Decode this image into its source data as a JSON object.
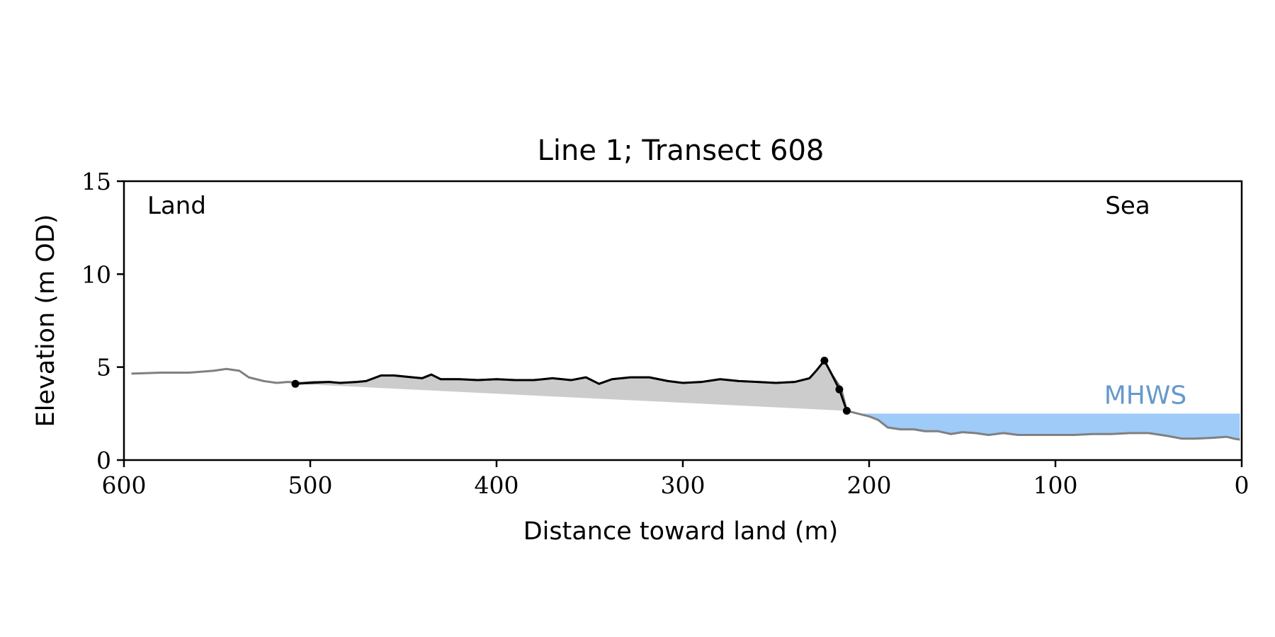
{
  "chart_data": {
    "type": "line",
    "title": "Line 1; Transect 608",
    "xlabel": "Distance toward land (m)",
    "ylabel": "Elevation (m OD)",
    "xlim": [
      600,
      0
    ],
    "ylim": [
      0,
      15
    ],
    "x_ticks": [
      "600",
      "500",
      "400",
      "300",
      "200",
      "100",
      "0"
    ],
    "y_ticks": [
      "0",
      "5",
      "10",
      "15"
    ],
    "grid": false,
    "annotations": {
      "left": "Land",
      "right": "Sea",
      "mhws_label": "MHWS"
    },
    "mhws": {
      "elevation": 2.5,
      "x_start": 204,
      "x_end": 1
    },
    "colors": {
      "profile": "#808080",
      "dune": "#000000",
      "dune_fill": "#cccccc",
      "water": "#9ecbf7",
      "mhws_text": "#6699cc"
    },
    "series": [
      {
        "key": "profile",
        "points": [
          [
            596,
            4.65
          ],
          [
            580,
            4.7
          ],
          [
            565,
            4.7
          ],
          [
            552,
            4.8
          ],
          [
            545,
            4.9
          ],
          [
            538,
            4.8
          ],
          [
            533,
            4.45
          ],
          [
            525,
            4.25
          ],
          [
            518,
            4.15
          ],
          [
            512,
            4.2
          ],
          [
            505,
            4.15
          ],
          [
            498,
            4.2
          ],
          [
            490,
            4.2
          ],
          [
            484,
            4.15
          ],
          [
            475,
            4.2
          ],
          [
            470,
            4.25
          ],
          [
            462,
            4.55
          ],
          [
            455,
            4.55
          ],
          [
            445,
            4.45
          ],
          [
            440,
            4.4
          ],
          [
            435,
            4.6
          ],
          [
            430,
            4.35
          ],
          [
            420,
            4.35
          ],
          [
            410,
            4.3
          ],
          [
            400,
            4.35
          ],
          [
            390,
            4.3
          ],
          [
            380,
            4.3
          ],
          [
            370,
            4.4
          ],
          [
            360,
            4.3
          ],
          [
            352,
            4.45
          ],
          [
            345,
            4.1
          ],
          [
            338,
            4.35
          ],
          [
            328,
            4.45
          ],
          [
            318,
            4.45
          ],
          [
            308,
            4.25
          ],
          [
            300,
            4.15
          ],
          [
            290,
            4.2
          ],
          [
            280,
            4.35
          ],
          [
            270,
            4.25
          ],
          [
            260,
            4.2
          ],
          [
            250,
            4.15
          ],
          [
            240,
            4.2
          ],
          [
            232,
            4.4
          ],
          [
            228,
            4.85
          ],
          [
            224,
            5.35
          ],
          [
            220,
            4.6
          ],
          [
            215,
            3.85
          ],
          [
            212,
            2.65
          ],
          [
            208,
            2.55
          ],
          [
            200,
            2.35
          ],
          [
            195,
            2.15
          ],
          [
            190,
            1.75
          ],
          [
            183,
            1.65
          ],
          [
            176,
            1.65
          ],
          [
            170,
            1.55
          ],
          [
            163,
            1.55
          ],
          [
            156,
            1.4
          ],
          [
            150,
            1.5
          ],
          [
            143,
            1.45
          ],
          [
            136,
            1.35
          ],
          [
            128,
            1.45
          ],
          [
            120,
            1.35
          ],
          [
            110,
            1.35
          ],
          [
            100,
            1.35
          ],
          [
            90,
            1.35
          ],
          [
            80,
            1.4
          ],
          [
            70,
            1.4
          ],
          [
            60,
            1.45
          ],
          [
            50,
            1.45
          ],
          [
            40,
            1.3
          ],
          [
            32,
            1.15
          ],
          [
            25,
            1.15
          ],
          [
            15,
            1.2
          ],
          [
            8,
            1.25
          ],
          [
            4,
            1.15
          ],
          [
            1,
            1.1
          ]
        ]
      },
      {
        "key": "dune",
        "points": [
          [
            508,
            4.1
          ],
          [
            500,
            4.15
          ],
          [
            490,
            4.2
          ],
          [
            484,
            4.15
          ],
          [
            475,
            4.2
          ],
          [
            470,
            4.25
          ],
          [
            462,
            4.55
          ],
          [
            455,
            4.55
          ],
          [
            445,
            4.45
          ],
          [
            440,
            4.4
          ],
          [
            435,
            4.6
          ],
          [
            430,
            4.35
          ],
          [
            420,
            4.35
          ],
          [
            410,
            4.3
          ],
          [
            400,
            4.35
          ],
          [
            390,
            4.3
          ],
          [
            380,
            4.3
          ],
          [
            370,
            4.4
          ],
          [
            360,
            4.3
          ],
          [
            352,
            4.45
          ],
          [
            345,
            4.1
          ],
          [
            338,
            4.35
          ],
          [
            328,
            4.45
          ],
          [
            318,
            4.45
          ],
          [
            308,
            4.25
          ],
          [
            300,
            4.15
          ],
          [
            290,
            4.2
          ],
          [
            280,
            4.35
          ],
          [
            270,
            4.25
          ],
          [
            260,
            4.2
          ],
          [
            250,
            4.15
          ],
          [
            240,
            4.2
          ],
          [
            232,
            4.4
          ],
          [
            228,
            4.85
          ],
          [
            224,
            5.35
          ],
          [
            220,
            4.6
          ],
          [
            216,
            3.8
          ],
          [
            212,
            2.65
          ]
        ]
      }
    ],
    "markers": [
      [
        508,
        4.1
      ],
      [
        224,
        5.35
      ],
      [
        216,
        3.8
      ],
      [
        212,
        2.65
      ]
    ]
  }
}
